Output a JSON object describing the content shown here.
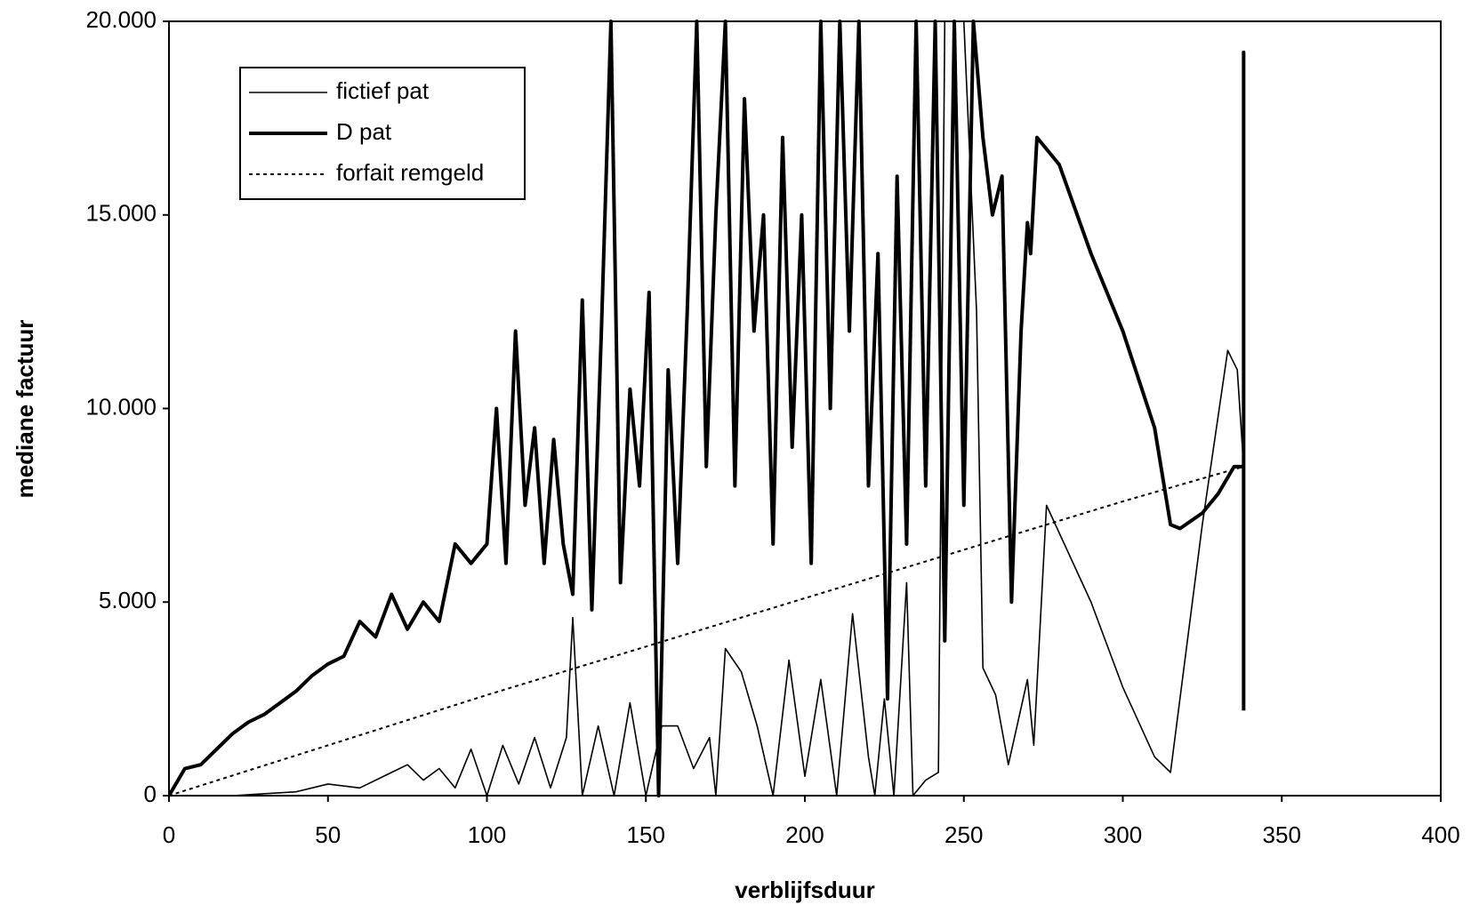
{
  "chart_data": {
    "type": "line",
    "xlabel": "verblijfsduur",
    "ylabel": "mediane factuur",
    "xlim": [
      0,
      400
    ],
    "ylim": [
      0,
      20000
    ],
    "xticks": [
      0,
      50,
      100,
      150,
      200,
      250,
      300,
      350,
      400
    ],
    "yticks": [
      0,
      {
        "value": 5000,
        "label": "5.000"
      },
      {
        "value": 10000,
        "label": "10.000"
      },
      {
        "value": 15000,
        "label": "15.000"
      },
      {
        "value": 20000,
        "label": "20.000"
      }
    ],
    "legend": "upper left",
    "series": [
      {
        "name": "fictief pat",
        "color": "#000000",
        "style": "thin",
        "x": [
          0,
          10,
          20,
          30,
          40,
          50,
          60,
          70,
          75,
          80,
          85,
          90,
          95,
          100,
          105,
          110,
          115,
          120,
          125,
          127,
          130,
          135,
          140,
          145,
          150,
          155,
          160,
          165,
          170,
          172,
          175,
          180,
          185,
          190,
          195,
          200,
          205,
          210,
          215,
          220,
          222,
          225,
          228,
          232,
          234,
          238,
          242,
          244,
          250,
          254,
          256,
          260,
          264,
          270,
          272,
          276,
          290,
          300,
          310,
          315,
          325,
          333,
          336,
          338
        ],
        "values": [
          0,
          0,
          0,
          50,
          100,
          300,
          200,
          600,
          800,
          400,
          700,
          200,
          1200,
          0,
          1300,
          300,
          1500,
          200,
          1500,
          4600,
          0,
          1800,
          0,
          2400,
          0,
          1800,
          1800,
          700,
          1500,
          0,
          3800,
          3200,
          1800,
          0,
          3500,
          500,
          3000,
          0,
          4700,
          1000,
          0,
          2500,
          0,
          5500,
          0,
          400,
          600,
          20000,
          20000,
          12500,
          3300,
          2600,
          800,
          3000,
          1300,
          7500,
          5000,
          2800,
          1000,
          600,
          7000,
          11500,
          11000,
          8500
        ]
      },
      {
        "name": "D pat",
        "color": "#000000",
        "style": "thick",
        "x": [
          0,
          5,
          10,
          15,
          20,
          25,
          30,
          35,
          40,
          45,
          50,
          55,
          60,
          65,
          70,
          75,
          80,
          85,
          90,
          95,
          100,
          103,
          106,
          109,
          112,
          115,
          118,
          121,
          124,
          127,
          130,
          133,
          136,
          139,
          142,
          145,
          148,
          151,
          154,
          157,
          160,
          163,
          166,
          169,
          172,
          175,
          178,
          181,
          184,
          187,
          190,
          193,
          196,
          199,
          202,
          205,
          208,
          211,
          214,
          217,
          220,
          223,
          226,
          229,
          232,
          235,
          238,
          241,
          244,
          247,
          250,
          253,
          256,
          259,
          262,
          265,
          268,
          270,
          271,
          273,
          280,
          290,
          300,
          310,
          315,
          318,
          325,
          330,
          335,
          338,
          338,
          338
        ],
        "values": [
          0,
          700,
          800,
          1200,
          1600,
          1900,
          2100,
          2400,
          2700,
          3100,
          3400,
          3600,
          4500,
          4100,
          5200,
          4300,
          5000,
          4500,
          6500,
          6000,
          6500,
          10000,
          6000,
          12000,
          7500,
          9500,
          6000,
          9200,
          6500,
          5200,
          12800,
          4800,
          12000,
          20000,
          5500,
          10500,
          8000,
          13000,
          0,
          11000,
          6000,
          12500,
          20000,
          8500,
          15000,
          20000,
          8000,
          18000,
          12000,
          15000,
          6500,
          17000,
          9000,
          15000,
          6000,
          20000,
          10000,
          20000,
          12000,
          20000,
          8000,
          14000,
          2500,
          16000,
          6500,
          20000,
          8000,
          20000,
          4000,
          20000,
          7500,
          20000,
          17000,
          15000,
          16000,
          5000,
          12000,
          14800,
          14000,
          17000,
          16300,
          14000,
          12000,
          9500,
          7000,
          6900,
          7300,
          7800,
          8500,
          8500,
          19200,
          2200
        ]
      },
      {
        "name": "forfait remgeld",
        "color": "#000000",
        "style": "dotted",
        "x": [
          0,
          50,
          100,
          150,
          200,
          250,
          300,
          338
        ],
        "values": [
          0,
          1300,
          2600,
          3850,
          5100,
          6350,
          7600,
          8500
        ]
      }
    ]
  }
}
